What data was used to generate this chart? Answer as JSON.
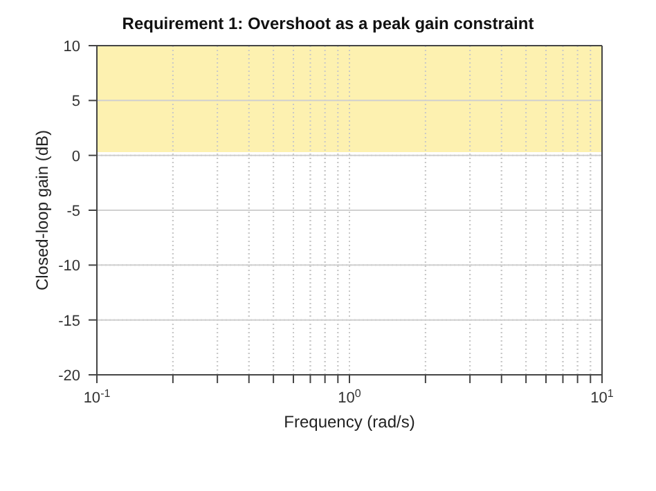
{
  "chart_data": {
    "type": "line",
    "title": "Requirement 1: Overshoot as a peak gain constraint",
    "xlabel": "Frequency (rad/s)",
    "ylabel": "Closed-loop gain (dB)",
    "log": "x",
    "xlim": [
      0.1,
      10
    ],
    "xticks": [
      {
        "value": 0.1,
        "label": "10$^{-1}$"
      },
      {
        "value": 0.2,
        "label": null
      },
      {
        "value": 0.3,
        "label": null
      },
      {
        "value": 0.4,
        "label": null
      },
      {
        "value": 0.5,
        "label": null
      },
      {
        "value": 0.6,
        "label": null
      },
      {
        "value": 0.7,
        "label": null
      },
      {
        "value": 0.8,
        "label": null
      },
      {
        "value": 0.9,
        "label": null
      },
      {
        "value": 1,
        "label": "10$^{0}$"
      },
      {
        "value": 2,
        "label": null
      },
      {
        "value": 3,
        "label": null
      },
      {
        "value": 4,
        "label": null
      },
      {
        "value": 5,
        "label": null
      },
      {
        "value": 6,
        "label": null
      },
      {
        "value": 7,
        "label": null
      },
      {
        "value": 8,
        "label": null
      },
      {
        "value": 9,
        "label": null
      },
      {
        "value": 10,
        "label": "10$^{1}$"
      }
    ],
    "ylim": [
      -20,
      10
    ],
    "yticks": [
      -20,
      -15,
      -10,
      -5,
      0,
      5,
      10
    ],
    "grid": true,
    "bands": [
      {
        "axis": "y",
        "from": 0.3,
        "to": 10,
        "color": "#fdf1b0"
      }
    ]
  }
}
